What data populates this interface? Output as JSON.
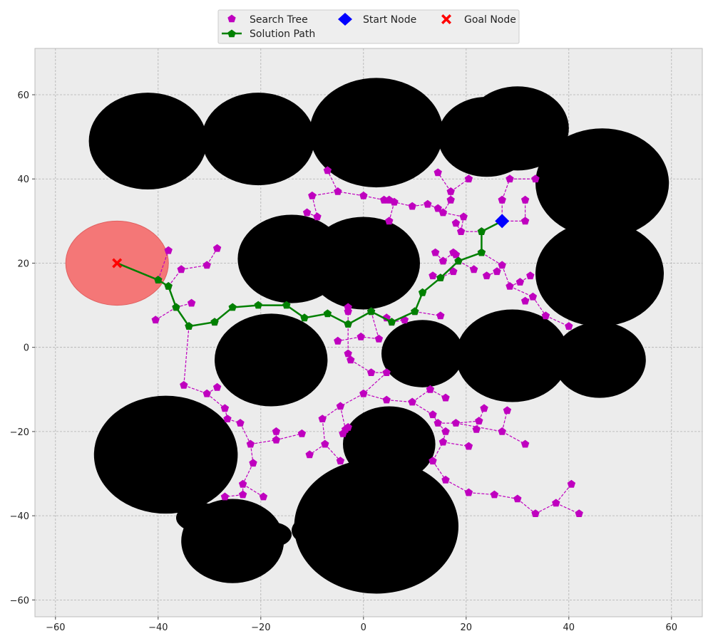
{
  "chart_data": {
    "type": "scatter",
    "xlim": [
      -64,
      66
    ],
    "ylim": [
      -64,
      71
    ],
    "grid": true,
    "legend_position": "top-center",
    "background_color": "#ececec",
    "x_ticks": [
      -60,
      -40,
      -20,
      0,
      20,
      40,
      60
    ],
    "y_ticks": [
      -60,
      -40,
      -20,
      0,
      20,
      40,
      60
    ],
    "x_tick_labels": [
      "−60",
      "−40",
      "−20",
      "0",
      "20",
      "40",
      "60"
    ],
    "y_tick_labels": [
      "−60",
      "−40",
      "−20",
      "0",
      "20",
      "40",
      "60"
    ],
    "legend": {
      "search_tree": "Search Tree",
      "solution_path": "Solution Path",
      "start_node": "Start Node",
      "goal_node": "Goal Node"
    },
    "colors": {
      "search_tree": "#bf00bf",
      "solution_path": "#008000",
      "start_node": "#0000ff",
      "goal_node": "#ff0000",
      "goal_region": "#f47777",
      "obstacle": "#000000"
    },
    "goal_region": {
      "cx": -48,
      "cy": 20,
      "r": 10
    },
    "start_node": [
      27,
      30
    ],
    "goal_node": [
      -48,
      20
    ],
    "obstacles": [
      {
        "cx": -42,
        "cy": 49,
        "rx": 11.5,
        "ry": 11.5
      },
      {
        "cx": -20.5,
        "cy": 49.5,
        "rx": 11,
        "ry": 11
      },
      {
        "cx": 2.5,
        "cy": 51,
        "rx": 13,
        "ry": 13
      },
      {
        "cx": 24,
        "cy": 50,
        "rx": 9.5,
        "ry": 9.5
      },
      {
        "cx": 30,
        "cy": 52,
        "rx": 10,
        "ry": 10
      },
      {
        "cx": 46.5,
        "cy": 39,
        "rx": 13,
        "ry": 13
      },
      {
        "cx": 46,
        "cy": 17.5,
        "rx": 12.5,
        "ry": 12.5
      },
      {
        "cx": -14,
        "cy": 21,
        "rx": 10.5,
        "ry": 10.5
      },
      {
        "cx": 0,
        "cy": 20,
        "rx": 11,
        "ry": 11
      },
      {
        "cx": -18,
        "cy": -3,
        "rx": 11,
        "ry": 11
      },
      {
        "cx": 11.5,
        "cy": -1.5,
        "rx": 8,
        "ry": 8
      },
      {
        "cx": 29,
        "cy": -2,
        "rx": 11,
        "ry": 11
      },
      {
        "cx": 46,
        "cy": -3,
        "rx": 9,
        "ry": 9
      },
      {
        "cx": -38.5,
        "cy": -25.5,
        "rx": 14,
        "ry": 14
      },
      {
        "cx": 5,
        "cy": -23,
        "rx": 9,
        "ry": 9
      },
      {
        "cx": 2.5,
        "cy": -42.5,
        "rx": 16,
        "ry": 16
      },
      {
        "cx": -31.5,
        "cy": -40.5,
        "rx": 5,
        "ry": 3.5
      },
      {
        "cx": -25.5,
        "cy": -46,
        "rx": 10,
        "ry": 10
      },
      {
        "cx": -18,
        "cy": -44.5,
        "rx": 4,
        "ry": 3
      },
      {
        "cx": -11,
        "cy": -43.5,
        "rx": 3,
        "ry": 3
      }
    ],
    "solution_path": [
      [
        27,
        30
      ],
      [
        23,
        27.5
      ],
      [
        23,
        22.5
      ],
      [
        18.5,
        20.5
      ],
      [
        15,
        16.5
      ],
      [
        11.5,
        13
      ],
      [
        10,
        8.5
      ],
      [
        5.5,
        6
      ],
      [
        1.5,
        8.5
      ],
      [
        -3,
        5.5
      ],
      [
        -7,
        8
      ],
      [
        -11.5,
        7
      ],
      [
        -15,
        10
      ],
      [
        -20.5,
        10
      ],
      [
        -25.5,
        9.5
      ],
      [
        -29,
        6
      ],
      [
        -34,
        5
      ],
      [
        -36.5,
        9.5
      ],
      [
        -38,
        14.5
      ],
      [
        -40,
        16
      ],
      [
        -48,
        20
      ]
    ],
    "search_tree_edges": [
      [
        [
          27,
          30
        ],
        [
          31.5,
          30
        ]
      ],
      [
        [
          31.5,
          30
        ],
        [
          31.5,
          35
        ]
      ],
      [
        [
          27,
          30
        ],
        [
          27,
          35
        ]
      ],
      [
        [
          27,
          35
        ],
        [
          28.5,
          40
        ]
      ],
      [
        [
          28.5,
          40
        ],
        [
          33.5,
          40
        ]
      ],
      [
        [
          23,
          27.5
        ],
        [
          19,
          27.5
        ]
      ],
      [
        [
          19,
          27.5
        ],
        [
          18,
          29.5
        ]
      ],
      [
        [
          19,
          27.5
        ],
        [
          19.5,
          31
        ]
      ],
      [
        [
          19.5,
          31
        ],
        [
          15.5,
          32
        ]
      ],
      [
        [
          15.5,
          32
        ],
        [
          14.5,
          33
        ]
      ],
      [
        [
          14.5,
          33
        ],
        [
          12.5,
          34
        ]
      ],
      [
        [
          15.5,
          32
        ],
        [
          17,
          35
        ]
      ],
      [
        [
          17,
          35
        ],
        [
          17,
          37
        ]
      ],
      [
        [
          17,
          37
        ],
        [
          20.5,
          40
        ]
      ],
      [
        [
          17,
          37
        ],
        [
          14.5,
          41.5
        ]
      ],
      [
        [
          12.5,
          34
        ],
        [
          9.5,
          33.5
        ]
      ],
      [
        [
          9.5,
          33.5
        ],
        [
          6,
          34.5
        ]
      ],
      [
        [
          6,
          34.5
        ],
        [
          5,
          35
        ]
      ],
      [
        [
          5,
          35
        ],
        [
          4,
          35
        ]
      ],
      [
        [
          4,
          35
        ],
        [
          0,
          36
        ]
      ],
      [
        [
          0,
          36
        ],
        [
          -5,
          37
        ]
      ],
      [
        [
          -5,
          37
        ],
        [
          -7,
          42
        ]
      ],
      [
        [
          -5,
          37
        ],
        [
          -10,
          36
        ]
      ],
      [
        [
          -10,
          36
        ],
        [
          -9,
          31
        ]
      ],
      [
        [
          -9,
          31
        ],
        [
          -11,
          32
        ]
      ],
      [
        [
          6,
          34.5
        ],
        [
          5,
          30
        ]
      ],
      [
        [
          23,
          22.5
        ],
        [
          27,
          19.5
        ]
      ],
      [
        [
          27,
          19.5
        ],
        [
          26,
          18
        ]
      ],
      [
        [
          26,
          18
        ],
        [
          24,
          17
        ]
      ],
      [
        [
          27,
          19.5
        ],
        [
          28.5,
          14.5
        ]
      ],
      [
        [
          28.5,
          14.5
        ],
        [
          30.5,
          15.5
        ]
      ],
      [
        [
          30.5,
          15.5
        ],
        [
          32.5,
          17
        ]
      ],
      [
        [
          28.5,
          14.5
        ],
        [
          33,
          12
        ]
      ],
      [
        [
          33,
          12
        ],
        [
          31.5,
          11
        ]
      ],
      [
        [
          33,
          12
        ],
        [
          35.5,
          7.5
        ]
      ],
      [
        [
          35.5,
          7.5
        ],
        [
          40,
          5
        ]
      ],
      [
        [
          18.5,
          20.5
        ],
        [
          18,
          22
        ]
      ],
      [
        [
          18,
          22
        ],
        [
          17.5,
          22.5
        ]
      ],
      [
        [
          17.5,
          22.5
        ],
        [
          15.5,
          20.5
        ]
      ],
      [
        [
          15.5,
          20.5
        ],
        [
          14,
          22.5
        ]
      ],
      [
        [
          18.5,
          20.5
        ],
        [
          21.5,
          18.5
        ]
      ],
      [
        [
          15,
          16.5
        ],
        [
          13.5,
          17
        ]
      ],
      [
        [
          15,
          16.5
        ],
        [
          17.5,
          18
        ]
      ],
      [
        [
          10,
          8.5
        ],
        [
          15,
          7.5
        ]
      ],
      [
        [
          5.5,
          6
        ],
        [
          8,
          6.5
        ]
      ],
      [
        [
          5.5,
          6
        ],
        [
          4.5,
          7
        ]
      ],
      [
        [
          1.5,
          8.5
        ],
        [
          3,
          2
        ]
      ],
      [
        [
          3,
          2
        ],
        [
          -0.5,
          2.5
        ]
      ],
      [
        [
          -0.5,
          2.5
        ],
        [
          -5,
          1.5
        ]
      ],
      [
        [
          -3,
          5.5
        ],
        [
          -3,
          8.5
        ]
      ],
      [
        [
          -3,
          8.5
        ],
        [
          -3,
          9.5
        ]
      ],
      [
        [
          -3,
          5.5
        ],
        [
          -3,
          -1.5
        ]
      ],
      [
        [
          -3,
          -1.5
        ],
        [
          -2.5,
          -3
        ]
      ],
      [
        [
          -2.5,
          -3
        ],
        [
          1.5,
          -6
        ]
      ],
      [
        [
          1.5,
          -6
        ],
        [
          4.5,
          -6
        ]
      ],
      [
        [
          -40,
          16
        ],
        [
          -38,
          23
        ]
      ],
      [
        [
          -38,
          14.5
        ],
        [
          -35.5,
          18.5
        ]
      ],
      [
        [
          -35.5,
          18.5
        ],
        [
          -30.5,
          19.5
        ]
      ],
      [
        [
          -30.5,
          19.5
        ],
        [
          -28.5,
          23.5
        ]
      ],
      [
        [
          -36.5,
          9.5
        ],
        [
          -33.5,
          10.5
        ]
      ],
      [
        [
          -36.5,
          9.5
        ],
        [
          -40.5,
          6.5
        ]
      ],
      [
        [
          -29,
          6
        ],
        [
          -29,
          6
        ]
      ],
      [
        [
          -34,
          5
        ],
        [
          -35,
          -9
        ]
      ],
      [
        [
          -35,
          -9
        ],
        [
          -30.5,
          -11
        ]
      ],
      [
        [
          -30.5,
          -11
        ],
        [
          -28.5,
          -9.5
        ]
      ],
      [
        [
          -30.5,
          -11
        ],
        [
          -27,
          -14.5
        ]
      ],
      [
        [
          -27,
          -14.5
        ],
        [
          -26.5,
          -17
        ]
      ],
      [
        [
          -26.5,
          -17
        ],
        [
          -24,
          -18
        ]
      ],
      [
        [
          -24,
          -18
        ],
        [
          -22,
          -23
        ]
      ],
      [
        [
          -22,
          -23
        ],
        [
          -17,
          -22
        ]
      ],
      [
        [
          -17,
          -22
        ],
        [
          -17,
          -20
        ]
      ],
      [
        [
          -17,
          -22
        ],
        [
          -12,
          -20.5
        ]
      ],
      [
        [
          -22,
          -23
        ],
        [
          -21.5,
          -27.5
        ]
      ],
      [
        [
          -21.5,
          -27.5
        ],
        [
          -23.5,
          -32.5
        ]
      ],
      [
        [
          -23.5,
          -32.5
        ],
        [
          -23.5,
          -35
        ]
      ],
      [
        [
          -23.5,
          -35
        ],
        [
          -27,
          -35.5
        ]
      ],
      [
        [
          -23.5,
          -32.5
        ],
        [
          -19.5,
          -35.5
        ]
      ],
      [
        [
          0,
          -11
        ],
        [
          -4.5,
          -14
        ]
      ],
      [
        [
          -4.5,
          -14
        ],
        [
          -8,
          -17
        ]
      ],
      [
        [
          -8,
          -17
        ],
        [
          -7.5,
          -23
        ]
      ],
      [
        [
          -7.5,
          -23
        ],
        [
          -10.5,
          -25.5
        ]
      ],
      [
        [
          -7.5,
          -23
        ],
        [
          -4.5,
          -27
        ]
      ],
      [
        [
          -4.5,
          -14
        ],
        [
          -3.5,
          -19.5
        ]
      ],
      [
        [
          -3.5,
          -19.5
        ],
        [
          -3,
          -19
        ]
      ],
      [
        [
          -3,
          -19
        ],
        [
          -4,
          -20.5
        ]
      ],
      [
        [
          4.5,
          -6
        ],
        [
          0,
          -11
        ]
      ],
      [
        [
          0,
          -11
        ],
        [
          4.5,
          -12.5
        ]
      ],
      [
        [
          4.5,
          -12.5
        ],
        [
          9.5,
          -13
        ]
      ],
      [
        [
          9.5,
          -13
        ],
        [
          13.5,
          -16
        ]
      ],
      [
        [
          13.5,
          -16
        ],
        [
          14.5,
          -18
        ]
      ],
      [
        [
          14.5,
          -18
        ],
        [
          16,
          -20
        ]
      ],
      [
        [
          16,
          -20
        ],
        [
          15.5,
          -22.5
        ]
      ],
      [
        [
          15.5,
          -22.5
        ],
        [
          20.5,
          -23.5
        ]
      ],
      [
        [
          14.5,
          -18
        ],
        [
          18,
          -18
        ]
      ],
      [
        [
          18,
          -18
        ],
        [
          22.5,
          -17.5
        ]
      ],
      [
        [
          22.5,
          -17.5
        ],
        [
          22,
          -19.5
        ]
      ],
      [
        [
          22.5,
          -17.5
        ],
        [
          23.5,
          -14.5
        ]
      ],
      [
        [
          13,
          -10
        ],
        [
          16,
          -12
        ]
      ],
      [
        [
          9.5,
          -13
        ],
        [
          13,
          -10
        ]
      ],
      [
        [
          13.5,
          -27
        ],
        [
          16,
          -31.5
        ]
      ],
      [
        [
          16,
          -31.5
        ],
        [
          20.5,
          -34.5
        ]
      ],
      [
        [
          20.5,
          -34.5
        ],
        [
          25.5,
          -35
        ]
      ],
      [
        [
          25.5,
          -35
        ],
        [
          30,
          -36
        ]
      ],
      [
        [
          30,
          -36
        ],
        [
          33.5,
          -39.5
        ]
      ],
      [
        [
          33.5,
          -39.5
        ],
        [
          37.5,
          -37
        ]
      ],
      [
        [
          37.5,
          -37
        ],
        [
          42,
          -39.5
        ]
      ],
      [
        [
          37.5,
          -37
        ],
        [
          40.5,
          -32.5
        ]
      ],
      [
        [
          27,
          -20
        ],
        [
          28,
          -15
        ]
      ],
      [
        [
          27,
          -20
        ],
        [
          31.5,
          -23
        ]
      ],
      [
        [
          18,
          -18
        ],
        [
          27,
          -20
        ]
      ],
      [
        [
          13.5,
          -27
        ],
        [
          15.5,
          -22.5
        ]
      ]
    ]
  }
}
